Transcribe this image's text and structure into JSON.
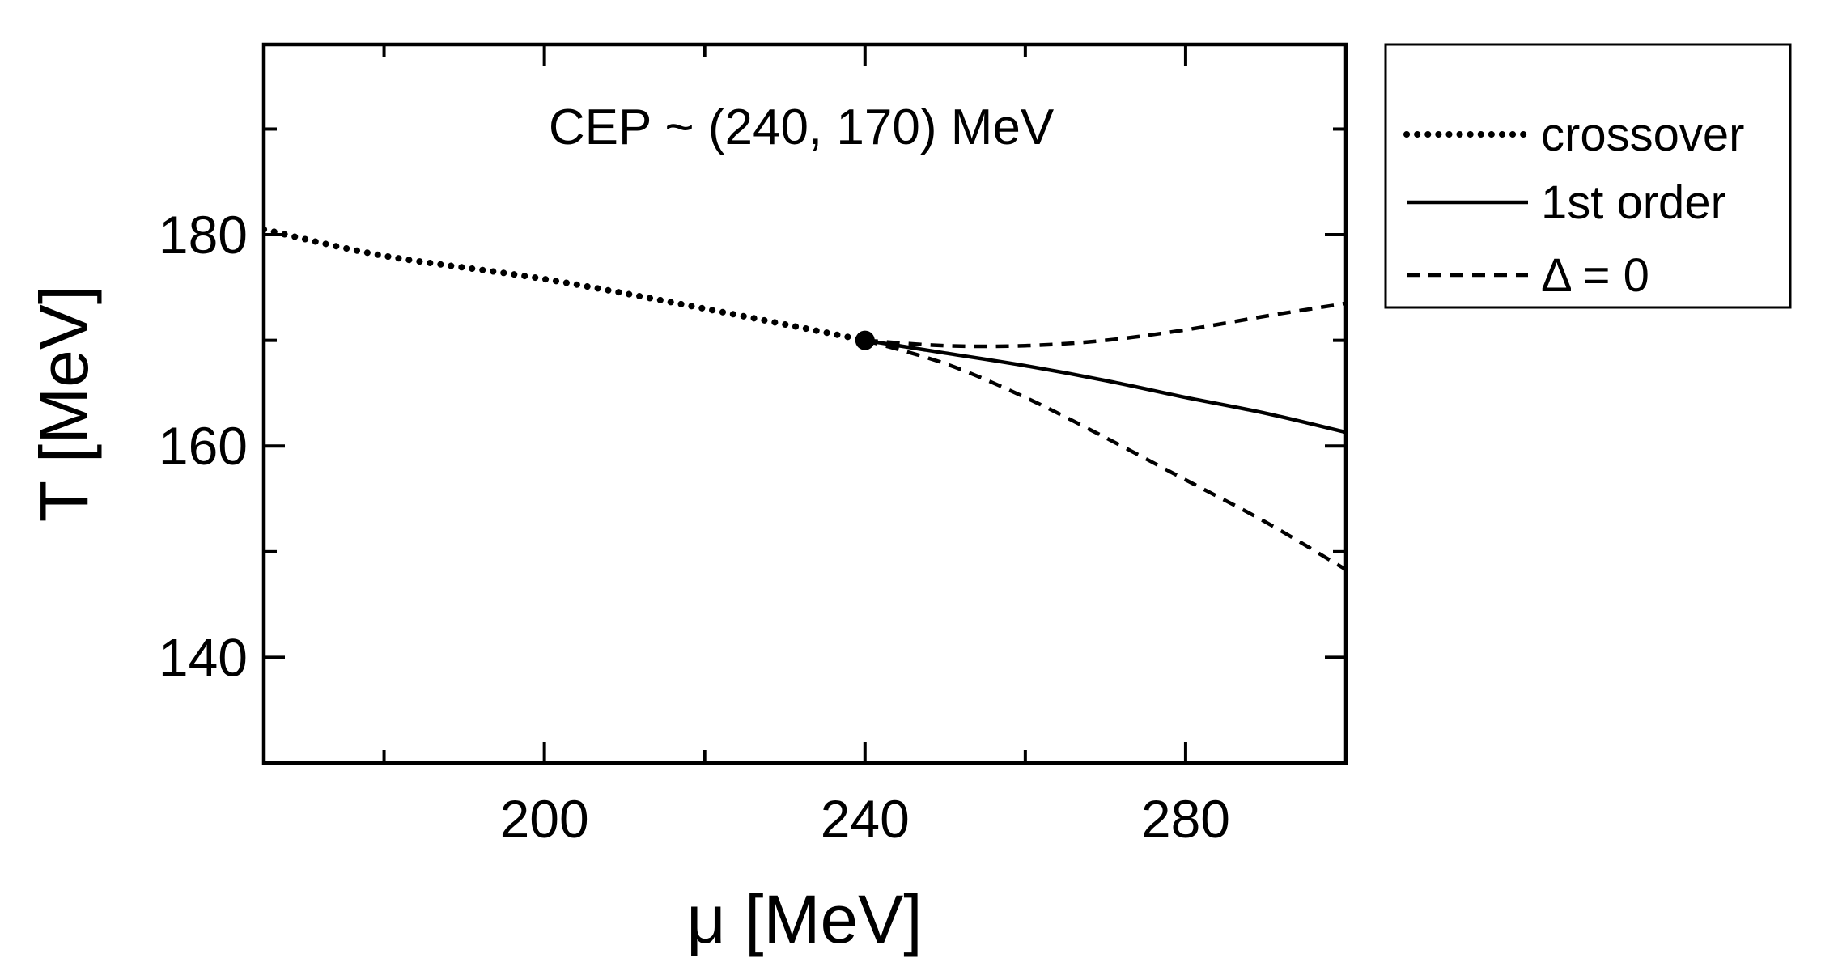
{
  "chart_data": {
    "type": "line",
    "title": "",
    "xlabel": "μ [MeV]",
    "ylabel": "T [MeV]",
    "xlim": [
      165,
      300
    ],
    "ylim": [
      130,
      198
    ],
    "xticks": [
      200,
      240,
      280
    ],
    "xticks_minor": [
      180,
      220,
      260,
      300
    ],
    "yticks": [
      140,
      160,
      180
    ],
    "yticks_minor": [
      150,
      170,
      190
    ],
    "annotation": "CEP ~ (240, 170) MeV",
    "cep": {
      "x": 240,
      "y": 170
    },
    "series": [
      {
        "name": "crossover",
        "style": "dotted",
        "points": [
          [
            165,
            180.5
          ],
          [
            180,
            178.0
          ],
          [
            200,
            175.8
          ],
          [
            220,
            173.0
          ],
          [
            240,
            170.0
          ]
        ]
      },
      {
        "name": "1st order",
        "style": "solid",
        "points": [
          [
            240,
            170.0
          ],
          [
            250,
            168.8
          ],
          [
            260,
            167.6
          ],
          [
            270,
            166.2
          ],
          [
            280,
            164.6
          ],
          [
            290,
            163.1
          ],
          [
            300,
            161.3
          ]
        ]
      },
      {
        "name": "Δ = 0",
        "style": "dashed",
        "branch": "upper",
        "points": [
          [
            240,
            170.0
          ],
          [
            250,
            169.5
          ],
          [
            260,
            169.5
          ],
          [
            270,
            170.0
          ],
          [
            280,
            171.0
          ],
          [
            290,
            172.3
          ],
          [
            300,
            173.5
          ]
        ]
      },
      {
        "name": "Δ = 0",
        "style": "dashed",
        "branch": "lower",
        "legend": false,
        "points": [
          [
            240,
            170.0
          ],
          [
            250,
            167.8
          ],
          [
            260,
            164.6
          ],
          [
            270,
            160.8
          ],
          [
            280,
            156.8
          ],
          [
            290,
            152.8
          ],
          [
            300,
            148.3
          ]
        ]
      }
    ],
    "legend": {
      "position": "outside-right-top",
      "entries": [
        {
          "label": "crossover",
          "style": "dotted"
        },
        {
          "label": "1st order",
          "style": "solid"
        },
        {
          "label": "Δ  = 0",
          "style": "dashed"
        }
      ]
    }
  }
}
